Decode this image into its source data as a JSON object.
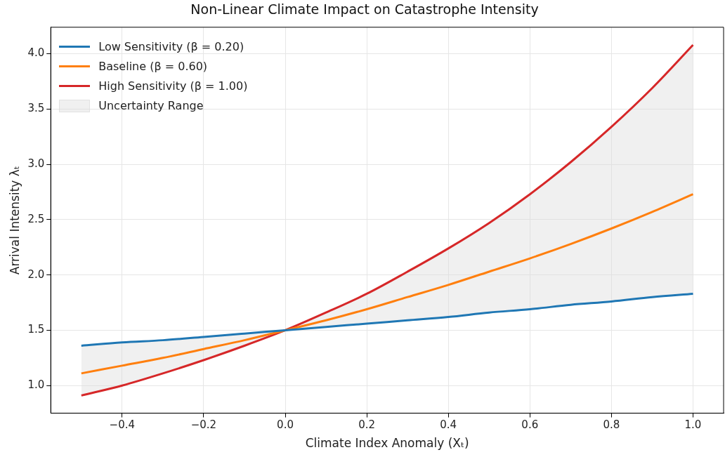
{
  "chart_data": {
    "type": "line",
    "title": "Non-Linear Climate Impact on Catastrophe Intensity",
    "xlabel": "Climate Index Anomaly (Xₜ)",
    "ylabel": "Arrival Intensity λₜ",
    "x": [
      -0.5,
      -0.4,
      -0.3,
      -0.2,
      -0.1,
      0,
      0.1,
      0.2,
      0.3,
      0.4,
      0.5,
      0.6,
      0.7,
      0.8,
      0.9,
      1.0
    ],
    "series": [
      {
        "name": "Low Sensitivity (β = 0.20)",
        "color": "#1f77b4",
        "values": [
          1.36,
          1.39,
          1.41,
          1.44,
          1.47,
          1.5,
          1.53,
          1.56,
          1.59,
          1.62,
          1.66,
          1.69,
          1.73,
          1.76,
          1.8,
          1.83
        ]
      },
      {
        "name": "Baseline (β = 0.60)",
        "color": "#ff7f0e",
        "values": [
          1.11,
          1.18,
          1.25,
          1.33,
          1.41,
          1.5,
          1.59,
          1.69,
          1.8,
          1.91,
          2.03,
          2.15,
          2.28,
          2.42,
          2.57,
          2.73
        ],
        "lower": [
          0.91,
          1.0,
          1.11,
          1.23,
          1.36,
          1.5,
          1.53,
          1.56,
          1.59,
          1.62,
          1.66,
          1.69,
          1.73,
          1.76,
          1.8,
          1.83
        ],
        "upper": [
          1.36,
          1.39,
          1.41,
          1.44,
          1.47,
          1.5,
          1.66,
          1.83,
          2.03,
          2.24,
          2.47,
          2.73,
          3.02,
          3.34,
          3.69,
          4.08
        ]
      },
      {
        "name": "High Sensitivity (β = 1.00)",
        "color": "#d62728",
        "values": [
          0.91,
          1.0,
          1.11,
          1.23,
          1.36,
          1.5,
          1.66,
          1.83,
          2.03,
          2.24,
          2.47,
          2.73,
          3.02,
          3.34,
          3.69,
          4.08
        ]
      }
    ],
    "annotations": [
      "Uncertainty Range"
    ],
    "xlim": [
      -0.575,
      1.075
    ],
    "xticks": [
      {
        "value": -0.4,
        "label": "−0.4"
      },
      {
        "value": -0.2,
        "label": "−0.2"
      },
      {
        "value": 0,
        "label": "0.0"
      },
      {
        "value": 0.2,
        "label": "0.2"
      },
      {
        "value": 0.4,
        "label": "0.4"
      },
      {
        "value": 0.6,
        "label": "0.6"
      },
      {
        "value": 0.8,
        "label": "0.8"
      },
      {
        "value": 1,
        "label": "1.0"
      }
    ],
    "ylim": [
      0.75,
      4.24
    ],
    "yticks": [
      {
        "value": 1,
        "label": "1.0"
      },
      {
        "value": 1.5,
        "label": "1.5"
      },
      {
        "value": 2,
        "label": "2.0"
      },
      {
        "value": 2.5,
        "label": "2.5"
      },
      {
        "value": 3,
        "label": "3.0"
      },
      {
        "value": 3.5,
        "label": "3.5"
      },
      {
        "value": 4,
        "label": "4.0"
      }
    ],
    "grid": true,
    "legend": "top left",
    "marker": "none",
    "line_style": "solid"
  }
}
